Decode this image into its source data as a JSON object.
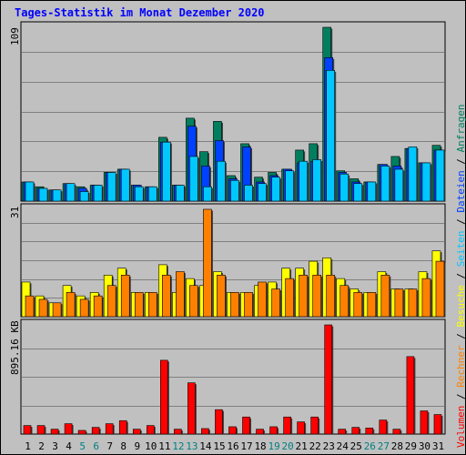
{
  "title": "Tages-Statistik im Monat Dezember 2020",
  "colors": {
    "background": "#c0c0c0",
    "title": "#0000ff",
    "anfragen": "#007f5f",
    "dateien": "#0040ff",
    "seiten": "#00c8ff",
    "besuche": "#ffff00",
    "rechner": "#ff8000",
    "volumen": "#ff0000",
    "weekend_label": "#008080"
  },
  "legend": {
    "anfragen": "Anfragen",
    "dateien": "Dateien",
    "seiten": "Seiten",
    "besuche": "Besuche",
    "rechner": "Rechner",
    "volumen": "Volumen",
    "sep": " / "
  },
  "chart_data": [
    {
      "type": "bar",
      "panel": "requests",
      "ymax_label": "109",
      "ylim": [
        0,
        109
      ],
      "categories": [
        "1",
        "2",
        "3",
        "4",
        "5",
        "6",
        "7",
        "8",
        "9",
        "10",
        "11",
        "12",
        "13",
        "14",
        "15",
        "16",
        "17",
        "18",
        "19",
        "20",
        "21",
        "22",
        "23",
        "24",
        "25",
        "26",
        "27",
        "28",
        "29",
        "30",
        "31"
      ],
      "series": [
        {
          "name": "Anfragen",
          "values": [
            12,
            9,
            7,
            11,
            9,
            10,
            18,
            20,
            10,
            9,
            40,
            10,
            52,
            31,
            50,
            16,
            36,
            15,
            18,
            20,
            32,
            36,
            109,
            19,
            14,
            12,
            23,
            28,
            33,
            24,
            35
          ]
        },
        {
          "name": "Dateien",
          "values": [
            12,
            8,
            7,
            11,
            8,
            10,
            18,
            20,
            10,
            9,
            37,
            10,
            47,
            22,
            38,
            14,
            34,
            12,
            16,
            20,
            24,
            25,
            90,
            18,
            12,
            12,
            23,
            22,
            33,
            24,
            32
          ]
        },
        {
          "name": "Seiten",
          "values": [
            12,
            8,
            7,
            11,
            6,
            10,
            18,
            20,
            9,
            9,
            37,
            10,
            28,
            9,
            25,
            13,
            10,
            11,
            15,
            19,
            25,
            26,
            82,
            17,
            11,
            12,
            22,
            20,
            34,
            24,
            32
          ]
        }
      ]
    },
    {
      "type": "bar",
      "panel": "visits",
      "ymax_label": "31",
      "ylim": [
        0,
        31
      ],
      "categories": [
        "1",
        "2",
        "3",
        "4",
        "5",
        "6",
        "7",
        "8",
        "9",
        "10",
        "11",
        "12",
        "13",
        "14",
        "15",
        "16",
        "17",
        "18",
        "19",
        "20",
        "21",
        "22",
        "23",
        "24",
        "25",
        "26",
        "27",
        "28",
        "29",
        "30",
        "31"
      ],
      "series": [
        {
          "name": "Besuche",
          "values": [
            10,
            6,
            4,
            9,
            6,
            7,
            12,
            14,
            7,
            7,
            15,
            7,
            11,
            9,
            13,
            7,
            7,
            9,
            10,
            14,
            14,
            16,
            17,
            11,
            8,
            7,
            13,
            8,
            8,
            13,
            19
          ]
        },
        {
          "name": "Rechner",
          "values": [
            6,
            5,
            4,
            7,
            5,
            6,
            9,
            12,
            7,
            7,
            12,
            13,
            9,
            31,
            12,
            7,
            7,
            10,
            8,
            11,
            12,
            12,
            12,
            9,
            7,
            7,
            12,
            8,
            8,
            11,
            16
          ]
        }
      ]
    },
    {
      "type": "bar",
      "panel": "volume",
      "ymax_label": "895.16 KB",
      "ylim": [
        0,
        895.16
      ],
      "unit": "KB",
      "categories": [
        "1",
        "2",
        "3",
        "4",
        "5",
        "6",
        "7",
        "8",
        "9",
        "10",
        "11",
        "12",
        "13",
        "14",
        "15",
        "16",
        "17",
        "18",
        "19",
        "20",
        "21",
        "22",
        "23",
        "24",
        "25",
        "26",
        "27",
        "28",
        "29",
        "30",
        "31"
      ],
      "series": [
        {
          "name": "Volumen",
          "values": [
            70,
            70,
            40,
            85,
            30,
            55,
            85,
            110,
            40,
            70,
            605,
            40,
            420,
            45,
            200,
            60,
            140,
            40,
            60,
            140,
            100,
            140,
            895,
            40,
            55,
            50,
            115,
            40,
            635,
            190,
            160
          ]
        }
      ]
    }
  ],
  "weekend_days": [
    "5",
    "6",
    "12",
    "13",
    "19",
    "20",
    "26",
    "27"
  ]
}
